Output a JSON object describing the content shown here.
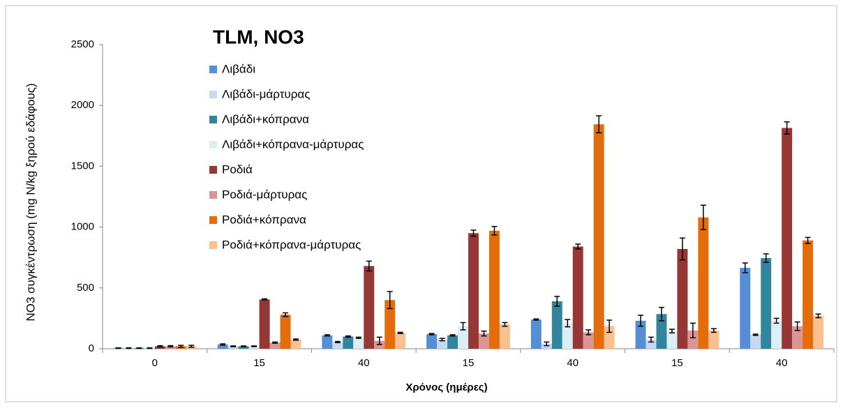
{
  "chart_data": {
    "type": "bar",
    "title": "TLM,  NO3",
    "x_label": "Χρόνος (ημέρες)",
    "y_label": "NO3 συγκέντρωση (mg N/kg ξηρού εδάφους)",
    "categories": [
      "0",
      "15",
      "40",
      "15",
      "40",
      "15",
      "40"
    ],
    "ylim": [
      0,
      2500
    ],
    "yticks": [
      0,
      500,
      1000,
      1500,
      2000,
      2500
    ],
    "grid": false,
    "legend": "top-left",
    "series": [
      {
        "name": "Λιβάδι",
        "color": "#558ed5",
        "values": [
          5,
          35,
          110,
          120,
          240,
          230,
          665
        ],
        "errors": [
          2,
          5,
          5,
          5,
          5,
          45,
          40
        ]
      },
      {
        "name": "Λιβάδι-μάρτυρας",
        "color": "#c6d9f1",
        "values": [
          5,
          20,
          55,
          75,
          40,
          75,
          115
        ],
        "errors": [
          2,
          3,
          5,
          10,
          15,
          20,
          5
        ]
      },
      {
        "name": "Λιβάδι+κόπρανα",
        "color": "#31859c",
        "values": [
          5,
          20,
          100,
          110,
          390,
          285,
          745
        ],
        "errors": [
          2,
          3,
          5,
          5,
          40,
          55,
          35
        ]
      },
      {
        "name": "Λιβάδι+κόπρανα-μάρτυρας",
        "color": "#dbeef4",
        "values": [
          5,
          20,
          90,
          185,
          210,
          145,
          230
        ],
        "errors": [
          2,
          3,
          5,
          30,
          30,
          15,
          20
        ]
      },
      {
        "name": "Ροδιά",
        "color": "#953735",
        "values": [
          20,
          405,
          680,
          950,
          840,
          820,
          1815
        ],
        "errors": [
          5,
          5,
          40,
          25,
          20,
          90,
          50
        ]
      },
      {
        "name": "Ροδιά-μάρτυρας",
        "color": "#d99694",
        "values": [
          20,
          50,
          65,
          125,
          135,
          150,
          185
        ],
        "errors": [
          5,
          5,
          30,
          20,
          20,
          60,
          35
        ]
      },
      {
        "name": "Ροδιά+κόπρανα",
        "color": "#e46c0a",
        "values": [
          20,
          280,
          400,
          970,
          1845,
          1080,
          890
        ],
        "errors": [
          8,
          15,
          70,
          35,
          70,
          100,
          25
        ]
      },
      {
        "name": "Ροδιά+κόπρανα-μάρτυρας",
        "color": "#fac090",
        "values": [
          20,
          75,
          130,
          200,
          185,
          150,
          270
        ],
        "errors": [
          8,
          5,
          5,
          15,
          50,
          15,
          15
        ]
      }
    ]
  }
}
